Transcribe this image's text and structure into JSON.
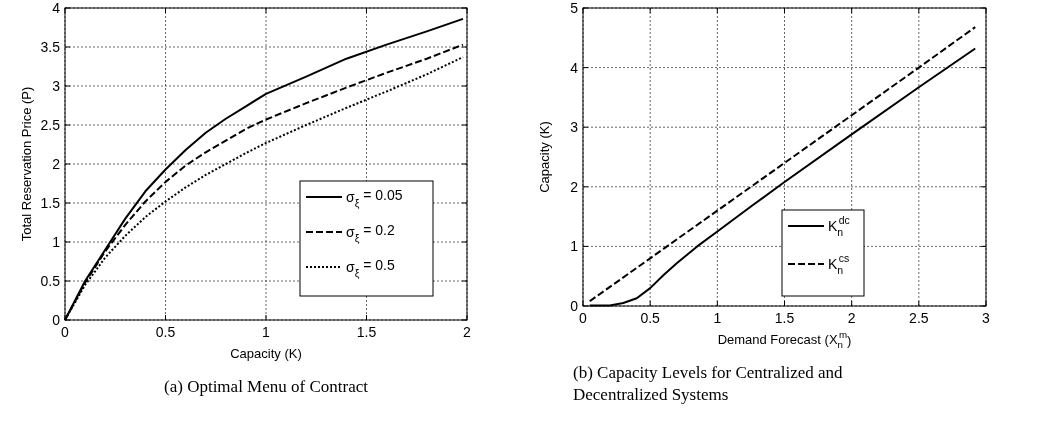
{
  "chart_data": [
    {
      "type": "line",
      "title": "(a) Optimal Menu of Contract",
      "xlabel": "Capacity (K)",
      "ylabel": "Total Reservation Price (P)",
      "xlim": [
        0,
        2
      ],
      "xticks": [
        0,
        0.5,
        1,
        1.5,
        2
      ],
      "ylim": [
        0,
        4
      ],
      "yticks": [
        0,
        0.5,
        1,
        1.5,
        2,
        2.5,
        3,
        3.5,
        4
      ],
      "grid": true,
      "legend": "bottom right",
      "x": [
        0,
        0.1,
        0.2,
        0.3,
        0.4,
        0.5,
        0.6,
        0.7,
        0.8,
        0.9,
        1,
        1.2,
        1.4,
        1.6,
        1.8,
        1.98
      ],
      "series": [
        {
          "name": "σ$_{ξ}$ = 0.05",
          "color": "#000000",
          "line_style": "solid",
          "values": [
            0,
            0.5,
            0.9,
            1.3,
            1.65,
            1.93,
            2.18,
            2.4,
            2.58,
            2.74,
            2.9,
            3.12,
            3.35,
            3.53,
            3.7,
            3.86
          ]
        },
        {
          "name": "σ$_{ξ}$ = 0.2",
          "color": "#000000",
          "line_style": "dashed",
          "values": [
            0,
            0.48,
            0.88,
            1.22,
            1.52,
            1.77,
            1.98,
            2.15,
            2.3,
            2.45,
            2.57,
            2.78,
            2.98,
            3.17,
            3.35,
            3.53
          ]
        },
        {
          "name": "σ$_{ξ}$ = 0.5",
          "color": "#000000",
          "line_style": "dotted",
          "values": [
            0,
            0.45,
            0.8,
            1.08,
            1.32,
            1.52,
            1.7,
            1.86,
            2.0,
            2.14,
            2.27,
            2.5,
            2.72,
            2.93,
            3.15,
            3.37
          ]
        }
      ]
    },
    {
      "type": "line",
      "title": "(b) Capacity Levels for Centralized and Decentralized Systems",
      "xlabel": "Demand Forecast (X$_{n}$$^{m}$)",
      "ylabel": "Capacity (K)",
      "xlim": [
        0,
        3
      ],
      "xticks": [
        0,
        0.5,
        1,
        1.5,
        2,
        2.5,
        3
      ],
      "ylim": [
        0,
        5
      ],
      "yticks": [
        0,
        1,
        2,
        3,
        4,
        5
      ],
      "grid": true,
      "legend": "bottom right",
      "series": [
        {
          "name": "K$_{n}$$^{dc}$",
          "color": "#000000",
          "line_style": "solid",
          "x": [
            0.05,
            0.2,
            0.3,
            0.4,
            0.5,
            0.6,
            0.7,
            0.85,
            1.0,
            1.25,
            1.5,
            2.0,
            2.5,
            2.92
          ],
          "values": [
            0.01,
            0.01,
            0.05,
            0.13,
            0.3,
            0.52,
            0.72,
            1.0,
            1.25,
            1.67,
            2.08,
            2.88,
            3.67,
            4.32
          ]
        },
        {
          "name": "K$_{n}$$^{cs}$",
          "color": "#000000",
          "line_style": "dashed",
          "x": [
            0.05,
            0.5,
            1,
            1.5,
            2,
            2.5,
            2.92
          ],
          "values": [
            0.08,
            0.8,
            1.6,
            2.4,
            3.2,
            4.0,
            4.68
          ]
        }
      ]
    }
  ]
}
